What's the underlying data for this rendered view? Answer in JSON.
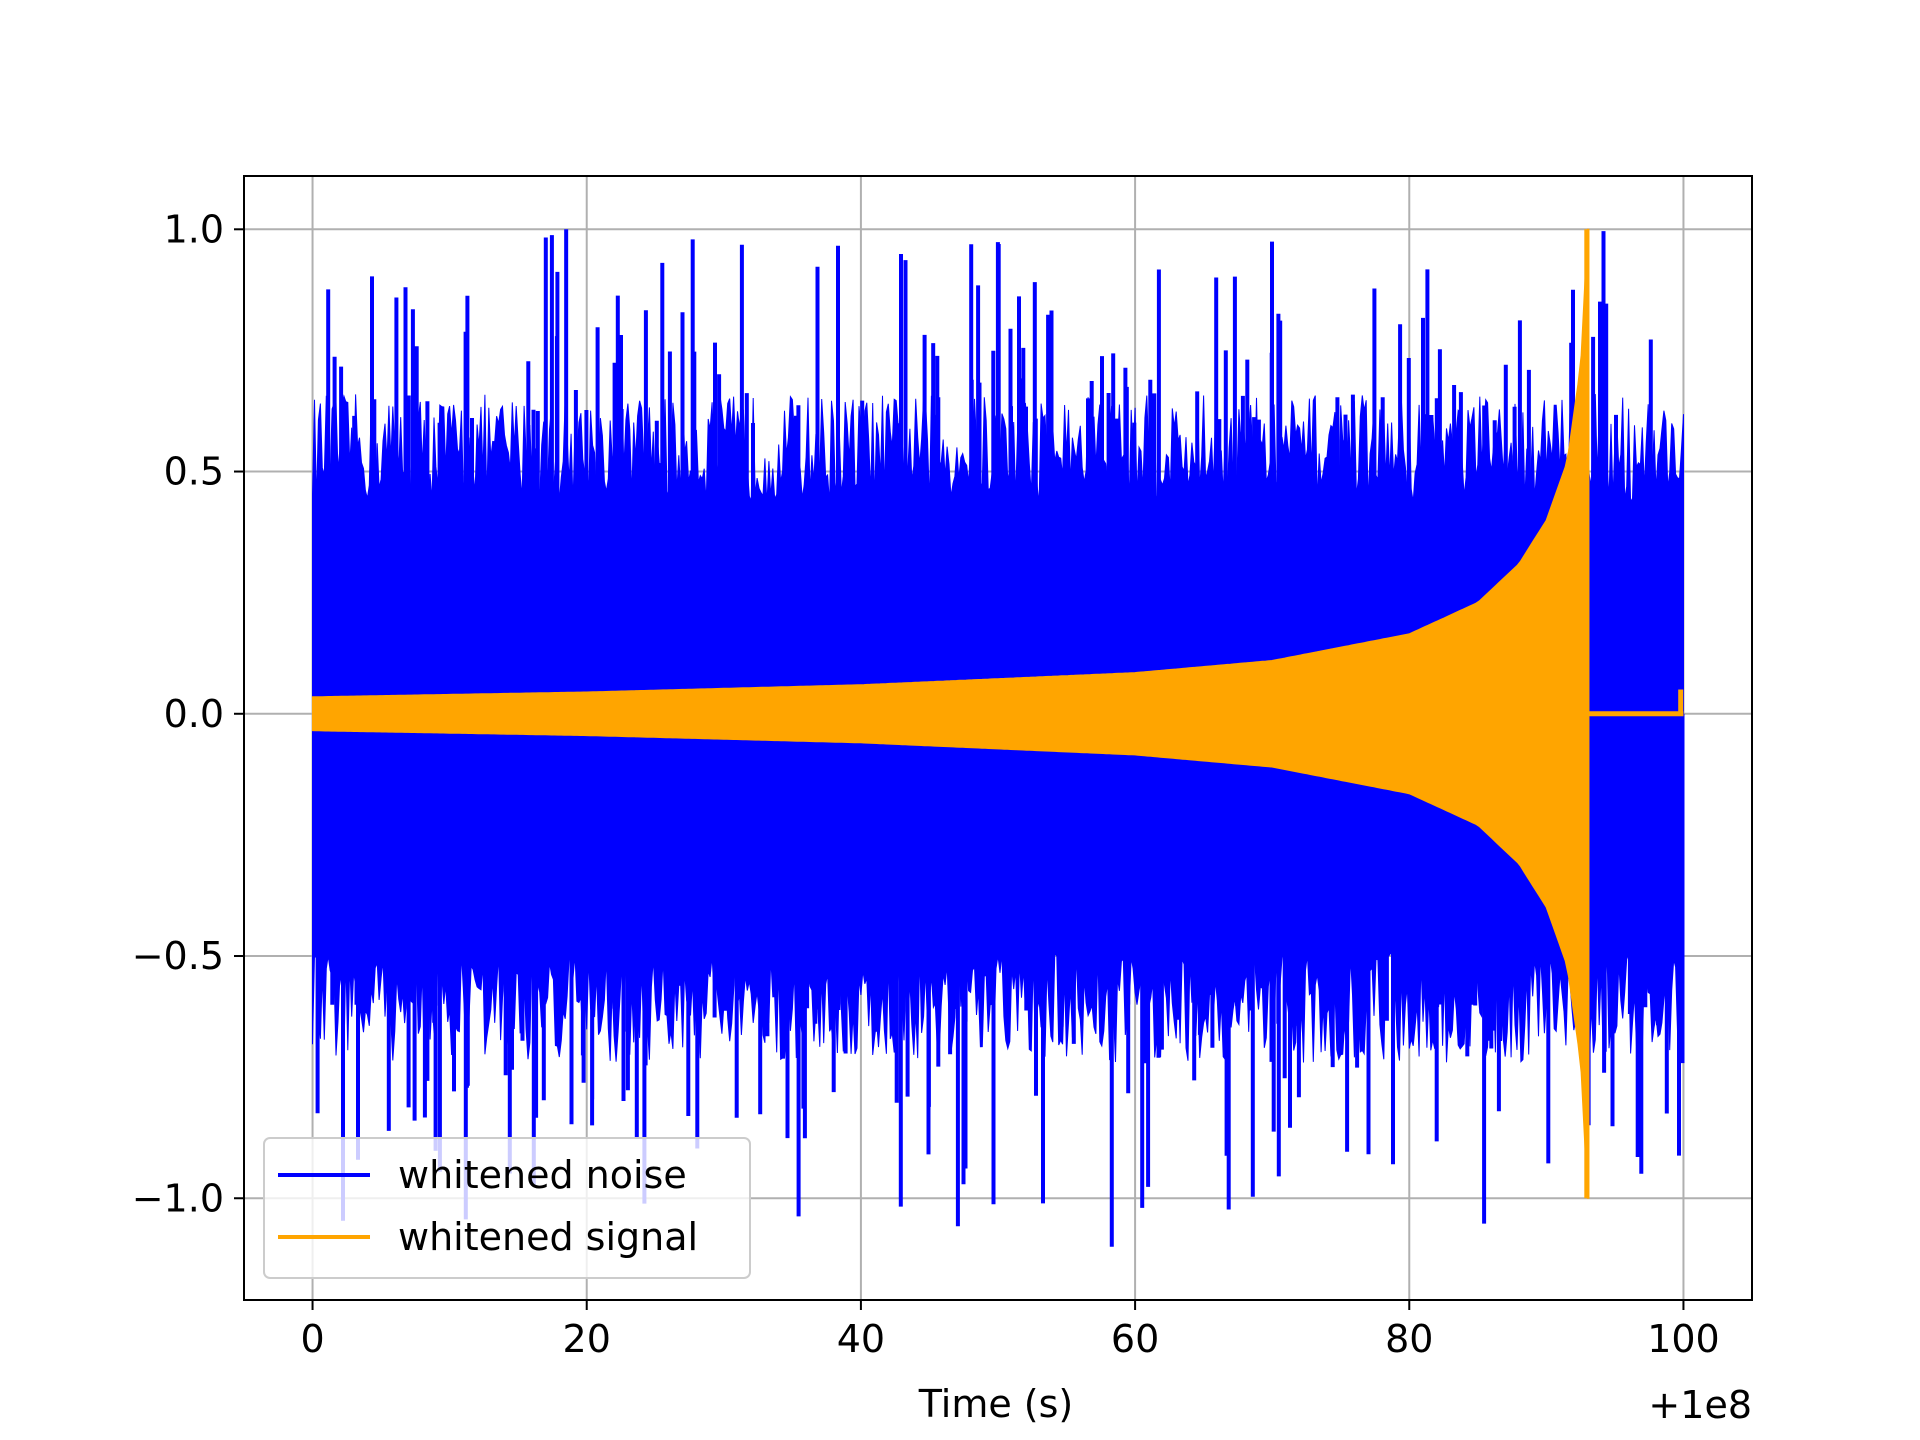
{
  "chart_data": {
    "type": "line",
    "title": "",
    "xlabel": "Time (s)",
    "ylabel": "",
    "x_offset_label": "+1e8",
    "xlim": [
      -5,
      105
    ],
    "ylim": [
      -1.21,
      1.11
    ],
    "x_ticks": [
      0,
      20,
      40,
      60,
      80,
      100
    ],
    "x_tick_labels": [
      "0",
      "20",
      "40",
      "60",
      "80",
      "100"
    ],
    "y_ticks": [
      -1.0,
      -0.5,
      0.0,
      0.5,
      1.0
    ],
    "y_tick_labels": [
      "−1.0",
      "−0.5",
      "0.0",
      "0.5",
      "1.0"
    ],
    "grid": true,
    "legend_position": "lower-left",
    "legend": [
      {
        "label": "whitened noise",
        "color": "#0000ff"
      },
      {
        "label": "whitened signal",
        "color": "#ffa500"
      }
    ],
    "series": [
      {
        "name": "whitened noise",
        "color": "#0000ff",
        "x_range": [
          0,
          100
        ],
        "typical_envelope": 0.6,
        "max": 1.0,
        "min": -1.1,
        "note_max_x": 18.5,
        "note_min_x": 58.3,
        "post_merger_envelope": 0.6
      },
      {
        "name": "whitened signal",
        "color": "#ffa500",
        "x_range": [
          0,
          100
        ],
        "envelope_x": [
          0,
          20,
          40,
          60,
          70,
          80,
          85,
          88,
          90,
          91.5,
          92.5,
          93.0
        ],
        "envelope_amp": [
          0.035,
          0.045,
          0.06,
          0.085,
          0.11,
          0.165,
          0.23,
          0.31,
          0.4,
          0.52,
          0.72,
          1.0
        ],
        "merger_x": 93.1,
        "max": 1.0,
        "min": -1.0,
        "post_merger_value": 0.0,
        "end_spike_x": 99.8,
        "end_spike_value": 0.05
      }
    ]
  }
}
